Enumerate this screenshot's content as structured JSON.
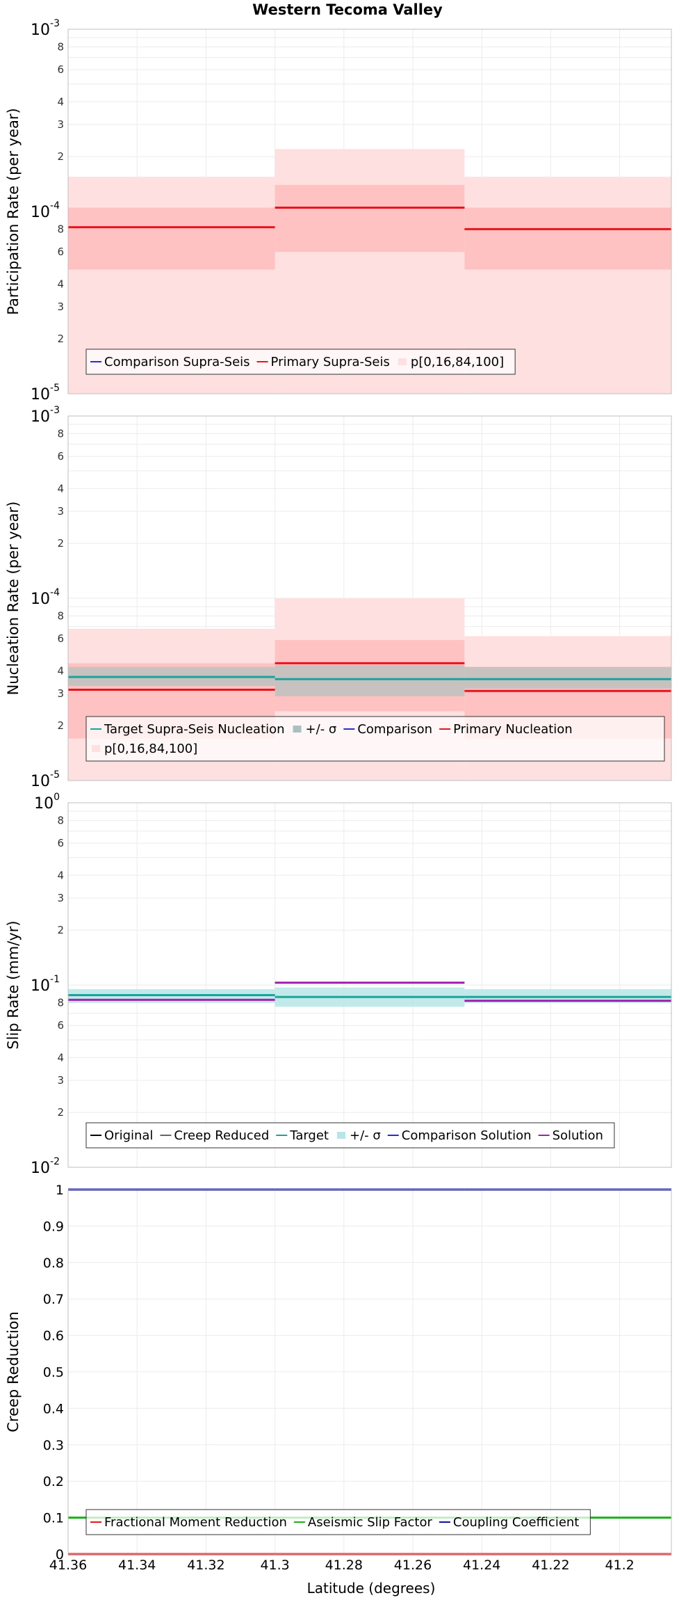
{
  "title": "Western Tecoma Valley",
  "x_axis": {
    "label": "Latitude (degrees)",
    "range": [
      41.36,
      41.185
    ],
    "ticks": [
      41.36,
      41.34,
      41.32,
      41.3,
      41.28,
      41.26,
      41.24,
      41.22,
      41.2
    ],
    "tick_labels": [
      "41.36",
      "41.34",
      "41.32",
      "41.3",
      "41.28",
      "41.26",
      "41.24",
      "41.22",
      "41.2"
    ]
  },
  "colors": {
    "primary": "#e8141c",
    "target": "#1aa39a",
    "sigma": "#b8e6e8",
    "solution": "#a020b0",
    "creep": "#666666",
    "original": "#000000",
    "comparison": "#2b2bd6",
    "aseismic": "#16b216",
    "coupling": "#1111a0"
  },
  "chart_data": [
    {
      "type": "line",
      "name": "participation",
      "ylabel": "Participation Rate (per year)",
      "yscale": "log",
      "ylim": [
        1e-05,
        0.001
      ],
      "segments": [
        [
          41.36,
          41.3
        ],
        [
          41.3,
          41.245
        ],
        [
          41.245,
          41.185
        ]
      ],
      "series": [
        {
          "name": "Comparison Supra-Seis",
          "values": []
        },
        {
          "name": "Primary Supra-Seis",
          "values": [
            8.2e-05,
            0.000105,
            8e-05
          ]
        }
      ],
      "bands": [
        {
          "name": "p[0,16,84,100]",
          "p0_100": [
            [
              1e-05,
              0.000155
            ],
            [
              1e-05,
              0.00022
            ],
            [
              1e-05,
              0.000155
            ]
          ],
          "p16_84": [
            [
              4.8e-05,
              0.000105
            ],
            [
              6e-05,
              0.00014
            ],
            [
              4.8e-05,
              0.000105
            ]
          ]
        }
      ],
      "legend": [
        "Comparison Supra-Seis",
        "Primary Supra-Seis",
        "p[0,16,84,100]"
      ],
      "legend_position": "bottom-left"
    },
    {
      "type": "line",
      "name": "nucleation",
      "ylabel": "Nucleation Rate (per year)",
      "yscale": "log",
      "ylim": [
        1e-05,
        0.001
      ],
      "segments": [
        [
          41.36,
          41.3
        ],
        [
          41.3,
          41.245
        ],
        [
          41.245,
          41.185
        ]
      ],
      "series": [
        {
          "name": "Target Supra-Seis Nucleation",
          "values": [
            3.7e-05,
            3.6e-05,
            3.6e-05
          ]
        },
        {
          "name": "Comparison",
          "values": []
        },
        {
          "name": "Primary Nucleation",
          "values": [
            3.15e-05,
            4.4e-05,
            3.1e-05
          ]
        }
      ],
      "sigma": [
        [
          3.3e-05,
          4.2e-05
        ],
        [
          2.9e-05,
          4.3e-05
        ],
        [
          3.2e-05,
          4.2e-05
        ]
      ],
      "bands": [
        {
          "name": "p[0,16,84,100]",
          "p0_100": [
            [
              1e-05,
              6.8e-05
            ],
            [
              1e-05,
              0.0001
            ],
            [
              1e-05,
              6.2e-05
            ]
          ],
          "p16_84": [
            [
              1.7e-05,
              4.4e-05
            ],
            [
              2.4e-05,
              5.9e-05
            ],
            [
              1.7e-05,
              4.2e-05
            ]
          ]
        }
      ],
      "legend": [
        "Target Supra-Seis Nucleation",
        "+/- σ",
        "Comparison",
        "Primary Nucleation",
        "p[0,16,84,100]"
      ],
      "legend_position": "bottom-left"
    },
    {
      "type": "line",
      "name": "slip-rate",
      "ylabel": "Slip Rate (mm/yr)",
      "yscale": "log",
      "ylim": [
        0.01,
        1
      ],
      "segments": [
        [
          41.36,
          41.3
        ],
        [
          41.3,
          41.245
        ],
        [
          41.245,
          41.185
        ]
      ],
      "series": [
        {
          "name": "Original",
          "values": []
        },
        {
          "name": "Creep Reduced",
          "values": []
        },
        {
          "name": "Target",
          "values": [
            0.088,
            0.086,
            0.086
          ]
        },
        {
          "name": "Comparison Solution",
          "values": []
        },
        {
          "name": "Solution",
          "values": [
            0.083,
            0.103,
            0.082
          ]
        }
      ],
      "sigma": [
        [
          0.08,
          0.095
        ],
        [
          0.076,
          0.097
        ],
        [
          0.08,
          0.095
        ]
      ],
      "legend": [
        "Original",
        "Creep Reduced",
        "Target",
        "+/- σ",
        "Comparison Solution",
        "Solution"
      ],
      "legend_position": "bottom-left"
    },
    {
      "type": "line",
      "name": "creep-reduction",
      "ylabel": "Creep Reduction",
      "yscale": "linear",
      "ylim": [
        0,
        1
      ],
      "y_ticks": [
        0,
        0.1,
        0.2,
        0.3,
        0.4,
        0.5,
        0.6,
        0.7,
        0.8,
        0.9,
        1
      ],
      "y_tick_labels": [
        "0",
        "0.1",
        "0.2",
        "0.3",
        "0.4",
        "0.5",
        "0.6",
        "0.7",
        "0.8",
        "0.9",
        "1"
      ],
      "series": [
        {
          "name": "Fractional Moment Reduction",
          "values": [
            0,
            0,
            0
          ]
        },
        {
          "name": "Aseismic Slip Factor",
          "values": [
            0.1,
            0.1,
            0.1
          ]
        },
        {
          "name": "Coupling Coefficient",
          "values": [
            1,
            1,
            1
          ]
        }
      ],
      "segments": [
        [
          41.36,
          41.3
        ],
        [
          41.3,
          41.245
        ],
        [
          41.245,
          41.185
        ]
      ],
      "legend": [
        "Fractional Moment Reduction",
        "Aseismic Slip Factor",
        "Coupling Coefficient"
      ],
      "legend_position": "bottom-left"
    }
  ]
}
